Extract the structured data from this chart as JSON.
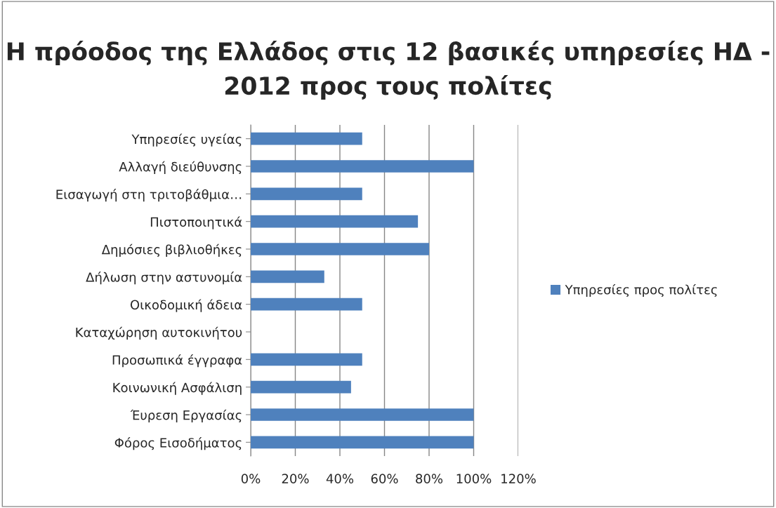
{
  "chart_data": {
    "type": "bar",
    "orientation": "horizontal",
    "title": "Η πρόοδος της Ελλάδος στις 12 βασικές υπηρεσίες ΗΔ - 2012 προς τους πολίτες",
    "categories": [
      "Υπηρεσίες υγείας",
      "Αλλαγή διεύθυνσης",
      "Εισαγωγή στη τριτοβάθμια…",
      "Πιστοποιητικά",
      "Δημόσιες βιβλιοθήκες",
      "Δήλωση στην αστυνομία",
      "Οικοδομική άδεια",
      "Καταχώρηση αυτοκινήτου",
      "Προσωπικά έγγραφα",
      "Κοινωνική Ασφάλιση",
      "Έυρεση Εργασίας",
      "Φόρος Εισοδήματος"
    ],
    "series": [
      {
        "name": "Υπηρεσίες προς πολίτες",
        "color": "#4f81bd",
        "values": [
          50,
          100,
          50,
          75,
          80,
          33,
          50,
          0,
          50,
          45,
          100,
          100
        ]
      }
    ],
    "xlim": [
      0,
      120
    ],
    "xticks": [
      {
        "value": 0,
        "label": "0%"
      },
      {
        "value": 20,
        "label": "20%"
      },
      {
        "value": 40,
        "label": "40%"
      },
      {
        "value": 60,
        "label": "60%"
      },
      {
        "value": 80,
        "label": "80%"
      },
      {
        "value": 100,
        "label": "100%"
      },
      {
        "value": 120,
        "label": "120%"
      }
    ],
    "grid": "x",
    "legend": "right"
  }
}
